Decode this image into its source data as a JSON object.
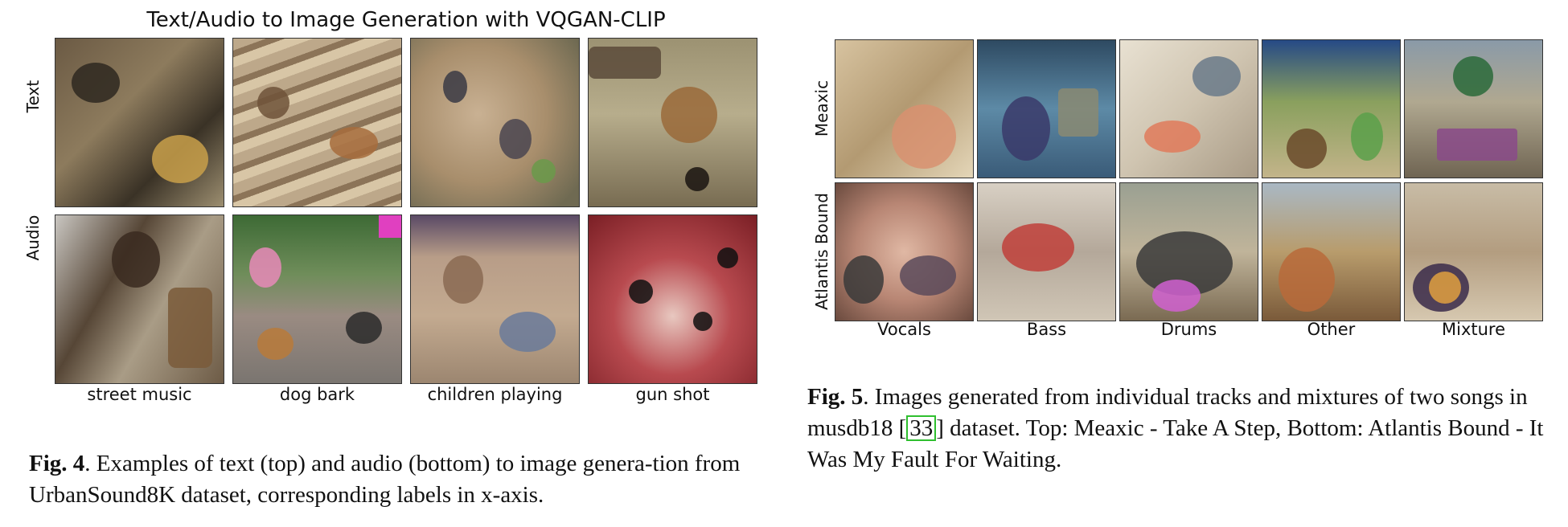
{
  "fig4": {
    "title": "Text/Audio to Image Generation with VQGAN-CLIP",
    "row_labels": [
      "Text",
      "Audio"
    ],
    "col_labels": [
      "street music",
      "dog bark",
      "children playing",
      "gun shot"
    ],
    "caption_label": "Fig. 4",
    "caption_text": ". Examples of text (top) and audio (bottom) to image genera-tion from UrbanSound8K dataset, corresponding labels in x-axis."
  },
  "fig5": {
    "row_labels": [
      "Meaxic",
      "Atlantis Bound"
    ],
    "col_labels": [
      "Vocals",
      "Bass",
      "Drums",
      "Other",
      "Mixture"
    ],
    "caption_label": "Fig. 5",
    "caption_before": ". Images generated from individual tracks and mixtures of two songs in musdb18 [",
    "caption_cite": "33",
    "caption_after": "] dataset. Top: Meaxic - Take A Step, Bottom: Atlantis Bound - It Was My Fault For Waiting."
  }
}
